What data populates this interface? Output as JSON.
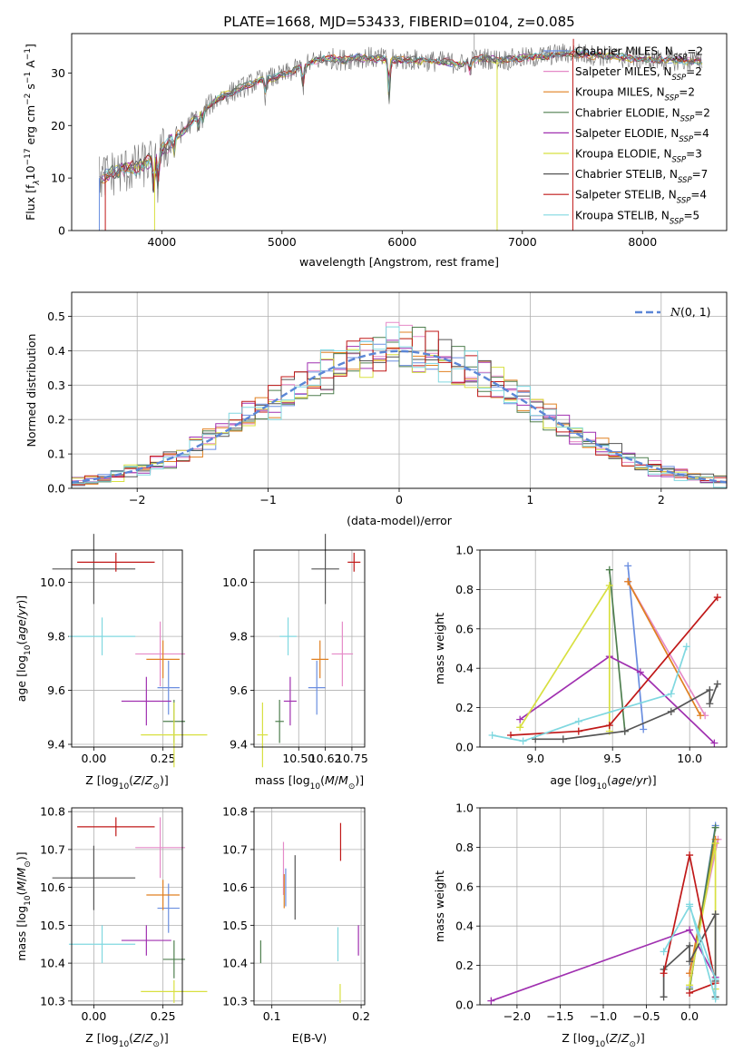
{
  "figure_title": "PLATE=1668, MJD=53433, FIBERID=0104, z=0.085",
  "colors": {
    "Chabrier MILES": "#6a8ee0",
    "Salpeter MILES": "#e58ac8",
    "Kroupa MILES": "#e08020",
    "Chabrier ELODIE": "#4f7f4f",
    "Salpeter ELODIE": "#a030b0",
    "Kroupa ELODIE": "#d8e040",
    "Chabrier STELIB": "#555555",
    "Salpeter STELIB": "#c01818",
    "Kroupa STELIB": "#80d8e0",
    "normal": "#5b86d6",
    "data": "#707070",
    "grid": "#b0b0b0"
  },
  "chart_data": [
    {
      "id": "spectrum",
      "type": "line",
      "title": "PLATE=1668, MJD=53433, FIBERID=0104, z=0.085",
      "xlabel": "wavelength [Angstrom, rest frame]",
      "ylabel": "Flux [f_λ 10^-17 erg cm^-2 s^-1 A^-1]",
      "ylabel_parts": [
        "Flux [f",
        "λ",
        "10",
        "−17",
        " erg cm",
        "−2",
        " s",
        "−1",
        " A",
        "−1",
        "]"
      ],
      "xlim": [
        3250,
        8700
      ],
      "ylim": [
        0,
        37.5
      ],
      "xticks": [
        4000,
        5000,
        6000,
        7000,
        8000
      ],
      "yticks": [
        0,
        10,
        20,
        30
      ],
      "grid": false,
      "legend_position": "top-right",
      "continuum": {
        "x": [
          3480,
          3600,
          3700,
          3800,
          3900,
          3950,
          4000,
          4100,
          4200,
          4300,
          4400,
          4500,
          4600,
          4700,
          4800,
          4900,
          5000,
          5100,
          5200,
          5300,
          5400,
          5500,
          5600,
          5700,
          5800,
          5900,
          6000,
          6100,
          6200,
          6300,
          6400,
          6500,
          6600,
          6700,
          6800,
          6900,
          7000,
          7100,
          7200,
          7300,
          7400,
          7500,
          7600,
          7700,
          7800,
          7900,
          8000,
          8100,
          8200,
          8300,
          8400,
          8500
        ],
        "y": [
          10,
          11,
          11.5,
          12,
          13,
          14,
          15,
          17.5,
          19.5,
          22,
          24,
          25.5,
          26.5,
          27.5,
          28.5,
          29,
          29.5,
          30.5,
          31.5,
          32.5,
          32.8,
          32.5,
          32.8,
          33,
          32.8,
          32.5,
          32.5,
          32.5,
          32.3,
          32.2,
          32,
          31.7,
          32.5,
          32.8,
          32.5,
          32.6,
          32.8,
          33,
          33.3,
          33.6,
          33.8,
          33.6,
          33.4,
          33.2,
          33,
          32.8,
          32.6,
          32.5,
          32.5,
          32.4,
          32.3,
          32.3
        ]
      },
      "series": [
        {
          "name": "Chabrier MILES",
          "nssp": "2"
        },
        {
          "name": "Salpeter MILES",
          "nssp": "2"
        },
        {
          "name": "Kroupa MILES",
          "nssp": "2"
        },
        {
          "name": "Chabrier ELODIE",
          "nssp": "2"
        },
        {
          "name": "Salpeter ELODIE",
          "nssp": "4"
        },
        {
          "name": "Kroupa ELODIE",
          "nssp": "3"
        },
        {
          "name": "Chabrier STELIB",
          "nssp": "7"
        },
        {
          "name": "Salpeter STELIB",
          "nssp": "4"
        },
        {
          "name": "Kroupa STELIB",
          "nssp": "5"
        }
      ],
      "legend_labels": [
        "Chabrier MILES, N_SSP=2",
        "Salpeter MILES, N_SSP=2",
        "Kroupa MILES, N_SSP=2",
        "Chabrier ELODIE, N_SSP=2",
        "Salpeter ELODIE, N_SSP=4",
        "Kroupa ELODIE, N_SSP=3",
        "Chabrier STELIB, N_SSP=7",
        "Salpeter STELIB, N_SSP=4",
        "Kroupa STELIB, N_SSP=5"
      ]
    },
    {
      "id": "residuals",
      "type": "histogram",
      "xlabel": "(data-model)/error",
      "ylabel": "Normed distribution",
      "xlim": [
        -2.5,
        2.5
      ],
      "ylim": [
        0,
        0.57
      ],
      "xticks": [
        -2,
        -1,
        0,
        1,
        2
      ],
      "xtick_labels": [
        "−2",
        "−1",
        "0",
        "1",
        "2"
      ],
      "yticks": [
        0,
        0.1,
        0.2,
        0.3,
        0.4,
        0.5
      ],
      "ytick_labels": [
        "0.0",
        "0.1",
        "0.2",
        "0.3",
        "0.4",
        "0.5"
      ],
      "grid": true,
      "legend_position": "top-right",
      "legend_label": "N(0,1)",
      "bin_width": 0.1,
      "bin_start": -2.5,
      "peak_bins": {
        "-0.1": 0.47,
        "0.0": 0.46,
        "-0.3": 0.44,
        "0.1": 0.42
      }
    },
    {
      "id": "age_vs_Z",
      "type": "errorbar",
      "xlabel": "Z [log10(Z/Zsun)]",
      "ylabel": "age [log10(age/yr)]",
      "xlim": [
        -0.08,
        0.32
      ],
      "ylim": [
        9.39,
        10.12
      ],
      "xticks": [
        0.0,
        0.25
      ],
      "xtick_labels": [
        "0.00",
        "0.25"
      ],
      "yticks": [
        9.4,
        9.6,
        9.8,
        10.0
      ],
      "ytick_labels": [
        "9.4",
        "9.6",
        "9.8",
        "10.0"
      ],
      "grid": true,
      "points": [
        {
          "series": "Chabrier MILES",
          "x": 0.27,
          "y": 9.61,
          "xerr": 0.04,
          "yerr": 0.1
        },
        {
          "series": "Salpeter MILES",
          "x": 0.24,
          "y": 9.735,
          "xerr": 0.09,
          "yerr": 0.12
        },
        {
          "series": "Kroupa MILES",
          "x": 0.25,
          "y": 9.715,
          "xerr": 0.06,
          "yerr": 0.07
        },
        {
          "series": "Chabrier ELODIE",
          "x": 0.29,
          "y": 9.485,
          "xerr": 0.04,
          "yerr": 0.08
        },
        {
          "series": "Salpeter ELODIE",
          "x": 0.19,
          "y": 9.56,
          "xerr": 0.09,
          "yerr": 0.09
        },
        {
          "series": "Kroupa ELODIE",
          "x": 0.29,
          "y": 9.435,
          "xerr": 0.12,
          "yerr": 0.12
        },
        {
          "series": "Chabrier STELIB",
          "x": 0.0,
          "y": 10.05,
          "xerr": 0.15,
          "yerr": 0.13
        },
        {
          "series": "Salpeter STELIB",
          "x": 0.08,
          "y": 10.075,
          "xerr": 0.14,
          "yerr": 0.035
        },
        {
          "series": "Kroupa STELIB",
          "x": 0.03,
          "y": 9.8,
          "xerr": 0.12,
          "yerr": 0.07
        }
      ]
    },
    {
      "id": "age_vs_mass",
      "type": "errorbar",
      "xlabel": "mass [log10(M/Msun)]",
      "ylabel": "",
      "xlim": [
        10.29,
        10.81
      ],
      "ylim": [
        9.39,
        10.12
      ],
      "xticks": [
        10.5,
        10.625,
        10.75
      ],
      "xtick_labels": [
        "10.50",
        "10.62",
        "10.75"
      ],
      "yticks": [
        9.4,
        9.6,
        9.8,
        10.0
      ],
      "ytick_labels": [
        "9.4",
        "9.6",
        "9.8",
        "10.0"
      ],
      "grid": true,
      "points": [
        {
          "series": "Chabrier MILES",
          "x": 10.585,
          "y": 9.61,
          "xerr": 0.04,
          "yerr": 0.1
        },
        {
          "series": "Salpeter MILES",
          "x": 10.705,
          "y": 9.735,
          "xerr": 0.05,
          "yerr": 0.12
        },
        {
          "series": "Kroupa MILES",
          "x": 10.6,
          "y": 9.715,
          "xerr": 0.04,
          "yerr": 0.07
        },
        {
          "series": "Chabrier ELODIE",
          "x": 10.41,
          "y": 9.485,
          "xerr": 0.02,
          "yerr": 0.08
        },
        {
          "series": "Salpeter ELODIE",
          "x": 10.46,
          "y": 9.56,
          "xerr": 0.03,
          "yerr": 0.09
        },
        {
          "series": "Kroupa ELODIE",
          "x": 10.33,
          "y": 9.435,
          "xerr": 0.025,
          "yerr": 0.12
        },
        {
          "series": "Chabrier STELIB",
          "x": 10.625,
          "y": 10.05,
          "xerr": 0.065,
          "yerr": 0.13
        },
        {
          "series": "Salpeter STELIB",
          "x": 10.76,
          "y": 10.075,
          "xerr": 0.03,
          "yerr": 0.035
        },
        {
          "series": "Kroupa STELIB",
          "x": 10.45,
          "y": 9.8,
          "xerr": 0.04,
          "yerr": 0.07
        }
      ]
    },
    {
      "id": "weight_vs_age",
      "type": "line",
      "xlabel": "age [log10(age/yr)]",
      "ylabel": "mass weight",
      "xlim": [
        8.64,
        10.24
      ],
      "ylim": [
        0,
        1.0
      ],
      "xticks": [
        9.0,
        9.5,
        10.0
      ],
      "xtick_labels": [
        "9.0",
        "9.5",
        "10.0"
      ],
      "yticks": [
        0,
        0.2,
        0.4,
        0.6,
        0.8,
        1.0
      ],
      "ytick_labels": [
        "0.0",
        "0.2",
        "0.4",
        "0.6",
        "0.8",
        "1.0"
      ],
      "grid": true,
      "series": [
        {
          "name": "Chabrier MILES",
          "x": [
            9.6,
            9.7
          ],
          "y": [
            0.92,
            0.09
          ]
        },
        {
          "name": "Salpeter MILES",
          "x": [
            9.6,
            10.1
          ],
          "y": [
            0.84,
            0.16
          ]
        },
        {
          "name": "Kroupa MILES",
          "x": [
            9.6,
            10.07
          ],
          "y": [
            0.84,
            0.16
          ]
        },
        {
          "name": "Chabrier ELODIE",
          "x": [
            9.48,
            9.58
          ],
          "y": [
            0.9,
            0.08
          ]
        },
        {
          "name": "Salpeter ELODIE",
          "x": [
            8.9,
            9.48,
            9.68,
            10.16
          ],
          "y": [
            0.14,
            0.46,
            0.38,
            0.02
          ]
        },
        {
          "name": "Kroupa ELODIE",
          "x": [
            8.9,
            9.48,
            9.48
          ],
          "y": [
            0.1,
            0.82,
            0.08
          ]
        },
        {
          "name": "Chabrier STELIB",
          "x": [
            9.0,
            9.18,
            9.58,
            9.88,
            10.13,
            10.13,
            10.18
          ],
          "y": [
            0.04,
            0.04,
            0.08,
            0.18,
            0.29,
            0.22,
            0.32
          ]
        },
        {
          "name": "Salpeter STELIB",
          "x": [
            8.84,
            9.28,
            9.48,
            10.18
          ],
          "y": [
            0.06,
            0.08,
            0.11,
            0.76
          ]
        },
        {
          "name": "Kroupa STELIB",
          "x": [
            8.72,
            8.92,
            9.28,
            9.88,
            9.98
          ],
          "y": [
            0.06,
            0.03,
            0.13,
            0.27,
            0.51
          ]
        }
      ]
    },
    {
      "id": "mass_vs_Z",
      "type": "errorbar",
      "xlabel": "Z [log10(Z/Zsun)]",
      "ylabel": "mass [log10(M/Msun)]",
      "xlim": [
        -0.08,
        0.32
      ],
      "ylim": [
        10.29,
        10.81
      ],
      "xticks": [
        0.0,
        0.25
      ],
      "xtick_labels": [
        "0.00",
        "0.25"
      ],
      "yticks": [
        10.3,
        10.4,
        10.5,
        10.6,
        10.7,
        10.8
      ],
      "ytick_labels": [
        "10.3",
        "10.4",
        "10.5",
        "10.6",
        "10.7",
        "10.8"
      ],
      "grid": true,
      "points": [
        {
          "series": "Chabrier MILES",
          "x": 0.27,
          "y": 10.545,
          "xerr": 0.04,
          "yerr": 0.065
        },
        {
          "series": "Salpeter MILES",
          "x": 0.24,
          "y": 10.705,
          "xerr": 0.09,
          "yerr": 0.08
        },
        {
          "series": "Kroupa MILES",
          "x": 0.25,
          "y": 10.58,
          "xerr": 0.06,
          "yerr": 0.04
        },
        {
          "series": "Chabrier ELODIE",
          "x": 0.29,
          "y": 10.41,
          "xerr": 0.04,
          "yerr": 0.05
        },
        {
          "series": "Salpeter ELODIE",
          "x": 0.19,
          "y": 10.46,
          "xerr": 0.09,
          "yerr": 0.04
        },
        {
          "series": "Kroupa ELODIE",
          "x": 0.29,
          "y": 10.325,
          "xerr": 0.12,
          "yerr": 0.03
        },
        {
          "series": "Chabrier STELIB",
          "x": 0.0,
          "y": 10.625,
          "xerr": 0.15,
          "yerr": 0.085
        },
        {
          "series": "Salpeter STELIB",
          "x": 0.08,
          "y": 10.76,
          "xerr": 0.14,
          "yerr": 0.025
        },
        {
          "series": "Kroupa STELIB",
          "x": 0.03,
          "y": 10.45,
          "xerr": 0.12,
          "yerr": 0.05
        }
      ]
    },
    {
      "id": "mass_vs_ebv",
      "type": "errorbar",
      "xlabel": "E(B-V)",
      "ylabel": "",
      "xlim": [
        0.08,
        0.204
      ],
      "ylim": [
        10.29,
        10.81
      ],
      "xticks": [
        0.1,
        0.2
      ],
      "xtick_labels": [
        "0.1",
        "0.2"
      ],
      "yticks": [
        10.3,
        10.4,
        10.5,
        10.6,
        10.7,
        10.8
      ],
      "ytick_labels": [
        "10.3",
        "10.4",
        "10.5",
        "10.6",
        "10.7",
        "10.8"
      ],
      "grid": true,
      "points": [
        {
          "series": "Chabrier MILES",
          "x": 0.1155,
          "y": 10.6,
          "xerr": 0,
          "yerr": 0.05
        },
        {
          "series": "Salpeter MILES",
          "x": 0.113,
          "y": 10.65,
          "xerr": 0,
          "yerr": 0.07
        },
        {
          "series": "Kroupa MILES",
          "x": 0.1138,
          "y": 10.59,
          "xerr": 0,
          "yerr": 0.045
        },
        {
          "series": "Chabrier ELODIE",
          "x": 0.0875,
          "y": 10.43,
          "xerr": 0,
          "yerr": 0.03
        },
        {
          "series": "Salpeter ELODIE",
          "x": 0.197,
          "y": 10.46,
          "xerr": 0,
          "yerr": 0.04
        },
        {
          "series": "Kroupa ELODIE",
          "x": 0.1765,
          "y": 10.32,
          "xerr": 0,
          "yerr": 0.025
        },
        {
          "series": "Chabrier STELIB",
          "x": 0.126,
          "y": 10.6,
          "xerr": 0,
          "yerr": 0.085
        },
        {
          "series": "Salpeter STELIB",
          "x": 0.177,
          "y": 10.72,
          "xerr": 0,
          "yerr": 0.05
        },
        {
          "series": "Kroupa STELIB",
          "x": 0.174,
          "y": 10.45,
          "xerr": 0,
          "yerr": 0.045
        }
      ]
    },
    {
      "id": "weight_vs_Z",
      "type": "line",
      "xlabel": "Z [log10(Z/Zsun)]",
      "ylabel": "mass weight",
      "xlim": [
        -2.43,
        0.43
      ],
      "ylim": [
        0,
        1.0
      ],
      "xticks": [
        -2.0,
        -1.5,
        -1.0,
        -0.5,
        0.0
      ],
      "xtick_labels": [
        "−2.0",
        "−1.5",
        "−1.0",
        "−0.5",
        "0.0"
      ],
      "yticks": [
        0,
        0.2,
        0.4,
        0.6,
        0.8,
        1.0
      ],
      "ytick_labels": [
        "0.0",
        "0.2",
        "0.4",
        "0.6",
        "0.8",
        "1.0"
      ],
      "grid": true,
      "series": [
        {
          "name": "Chabrier MILES",
          "x": [
            0.0,
            0.3
          ],
          "y": [
            0.09,
            0.91
          ]
        },
        {
          "name": "Salpeter MILES",
          "x": [
            0.0,
            0.33
          ],
          "y": [
            0.16,
            0.84
          ]
        },
        {
          "name": "Kroupa MILES",
          "x": [
            0.0,
            0.3
          ],
          "y": [
            0.16,
            0.84
          ]
        },
        {
          "name": "Chabrier ELODIE",
          "x": [
            0.0,
            0.3
          ],
          "y": [
            0.08,
            0.9
          ]
        },
        {
          "name": "Salpeter ELODIE",
          "x": [
            -2.3,
            0.0,
            0.3
          ],
          "y": [
            0.02,
            0.38,
            0.14
          ]
        },
        {
          "name": "Kroupa ELODIE",
          "x": [
            0.0,
            0.3,
            0.3
          ],
          "y": [
            0.1,
            0.82,
            0.08
          ]
        },
        {
          "name": "Chabrier STELIB",
          "x": [
            -0.3,
            -0.3,
            0.0,
            0.0,
            0.3,
            0.3,
            0.3
          ],
          "y": [
            0.04,
            0.18,
            0.3,
            0.22,
            0.46,
            0.12,
            0.04
          ]
        },
        {
          "name": "Salpeter STELIB",
          "x": [
            -0.3,
            0.0,
            0.3,
            0.0
          ],
          "y": [
            0.16,
            0.76,
            0.11,
            0.06
          ]
        },
        {
          "name": "Kroupa STELIB",
          "x": [
            -0.3,
            0.0,
            0.3,
            0.3,
            0.0
          ],
          "y": [
            0.27,
            0.5,
            0.13,
            0.03,
            0.51
          ]
        }
      ]
    }
  ]
}
